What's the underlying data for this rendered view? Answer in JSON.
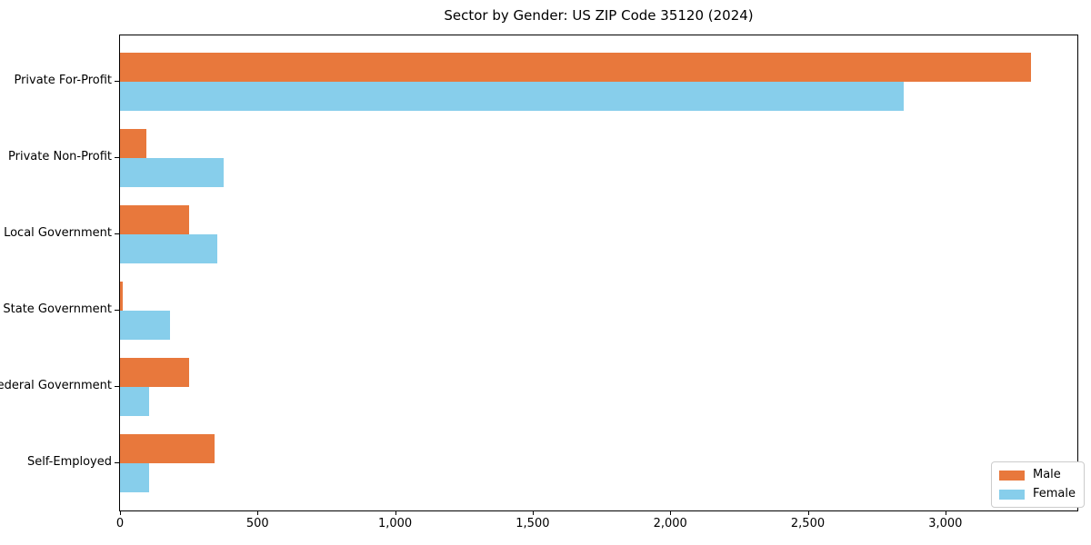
{
  "figure": {
    "title": "Sector by Gender: US ZIP Code 35120 (2024)"
  },
  "chart_data": {
    "type": "bar",
    "orientation": "horizontal",
    "title": "Sector by Gender: US ZIP Code 35120 (2024)",
    "categories": [
      "Private For-Profit",
      "Private Non-Profit",
      "Local Government",
      "State Government",
      "Federal Government",
      "Self-Employed"
    ],
    "series": [
      {
        "name": "Male",
        "color": "#e8783c",
        "values": [
          3310,
          95,
          250,
          10,
          250,
          345
        ]
      },
      {
        "name": "Female",
        "color": "#87ceeb",
        "values": [
          2850,
          375,
          355,
          180,
          105,
          105
        ]
      }
    ],
    "xlabel": "",
    "ylabel": "",
    "xlim": [
      0,
      3480
    ],
    "xticks": [
      0,
      500,
      1000,
      1500,
      2000,
      2500,
      3000
    ],
    "xtick_labels": [
      "0",
      "500",
      "1,000",
      "1,500",
      "2,000",
      "2,500",
      "3,000"
    ],
    "grid": false,
    "legend": {
      "position": "lower-right",
      "entries": [
        "Male",
        "Female"
      ]
    }
  }
}
